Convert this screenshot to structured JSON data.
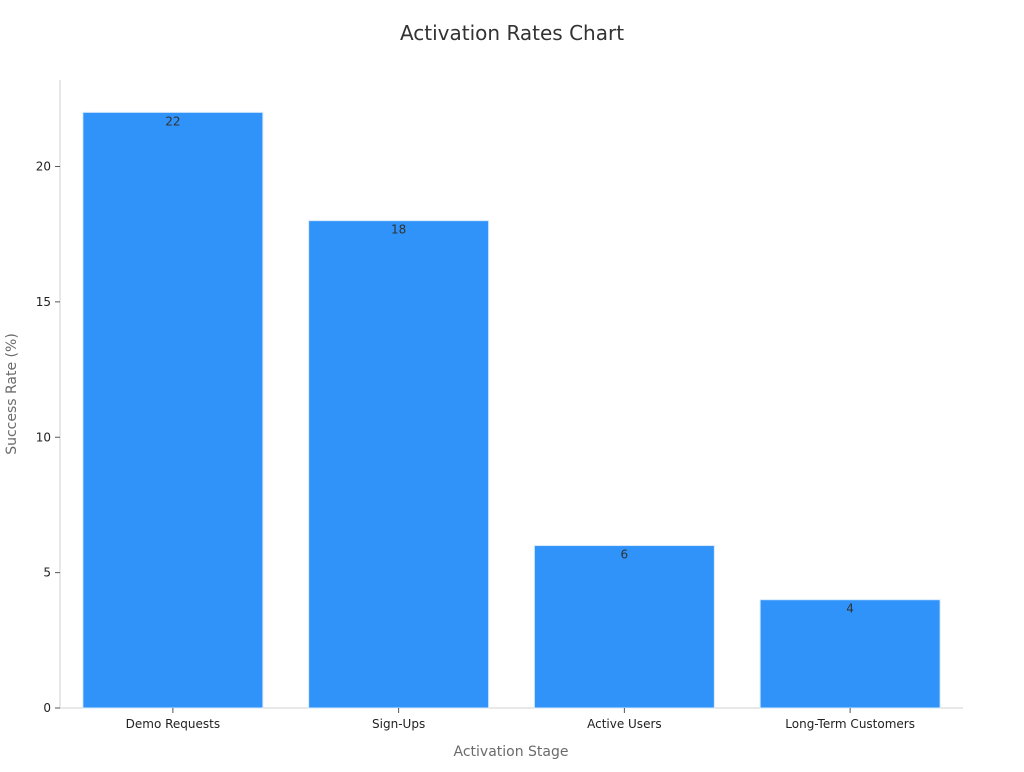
{
  "chart_data": {
    "type": "bar",
    "title": "Activation Rates Chart",
    "xlabel": "Activation Stage",
    "ylabel": "Success Rate (%)",
    "categories": [
      "Demo Requests",
      "Sign-Ups",
      "Active Users",
      "Long-Term Customers"
    ],
    "values": [
      22,
      18,
      6,
      4
    ],
    "data_labels": [
      "22",
      "18",
      "6",
      "4"
    ],
    "ylim": [
      0,
      23.1
    ],
    "yticks": [
      0,
      5,
      10,
      15,
      20
    ],
    "grid": false,
    "legend": "none",
    "bar_color": "#2f93f9",
    "bar_edge_color": "#d6e9fd",
    "axis_color": "#d0d0d0"
  }
}
